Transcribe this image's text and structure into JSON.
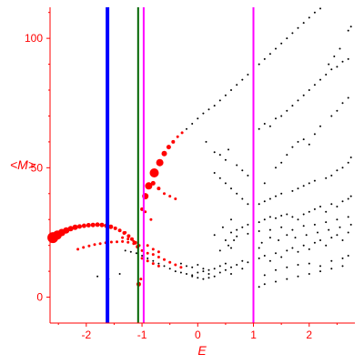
{
  "chart_data": {
    "type": "scatter",
    "xlabel": "E",
    "ylabel": "<M>",
    "xlim": [
      -2.65,
      2.82
    ],
    "ylim": [
      -10,
      112
    ],
    "xticks": [
      -2,
      -1,
      0,
      1,
      2
    ],
    "yticks": [
      0,
      50,
      100
    ],
    "ytick_labels": [
      "0",
      "50",
      "100"
    ],
    "colors": {
      "axis": "#ff0000",
      "black_points": "#000000",
      "red_points": "#ff0000"
    },
    "vlines": [
      {
        "x": -1.62,
        "color": "#0000ff",
        "width": 4
      },
      {
        "x": -1.07,
        "color": "#006400",
        "width": 2
      },
      {
        "x": -0.97,
        "color": "#ff00ff",
        "width": 2
      },
      {
        "x": 1.0,
        "color": "#ff00ff",
        "width": 2
      }
    ],
    "series": [
      {
        "color": "#ff0000",
        "points": [
          [
            -2.6,
            23.0,
            6
          ],
          [
            -2.52,
            24.0,
            5
          ],
          [
            -2.44,
            25.0,
            4
          ],
          [
            -2.36,
            25.8,
            3.5
          ],
          [
            -2.28,
            26.5,
            3
          ],
          [
            -2.2,
            27.0,
            3
          ],
          [
            -2.12,
            27.3,
            2.5
          ],
          [
            -2.04,
            27.6,
            2.5
          ],
          [
            -1.96,
            27.8,
            2.5
          ],
          [
            -1.88,
            27.9,
            2.5
          ],
          [
            -1.8,
            28.0,
            2.5
          ],
          [
            -1.72,
            27.9,
            2.5
          ],
          [
            -1.64,
            27.6,
            2.5
          ],
          [
            -1.56,
            27.2,
            2.5
          ],
          [
            -1.48,
            26.6,
            2
          ],
          [
            -1.4,
            25.8,
            2
          ],
          [
            -1.32,
            24.8,
            2
          ],
          [
            -1.24,
            23.6,
            2
          ],
          [
            -1.18,
            22.4,
            2
          ],
          [
            -1.12,
            21.0,
            2
          ],
          [
            -1.08,
            19.5,
            2
          ],
          [
            -0.94,
            39.0,
            3.5
          ],
          [
            -0.88,
            43.0,
            4
          ],
          [
            -0.78,
            48.0,
            5
          ],
          [
            -0.68,
            52.0,
            4
          ],
          [
            -0.6,
            55.5,
            3
          ],
          [
            -0.52,
            58.0,
            2.5
          ],
          [
            -0.44,
            60.0,
            2
          ],
          [
            -0.36,
            62.0,
            1.5
          ],
          [
            -0.28,
            63.5,
            1.5
          ],
          [
            -0.8,
            44.0,
            2.5
          ],
          [
            -0.7,
            42.0,
            2
          ],
          [
            -0.6,
            40.0,
            1.5
          ],
          [
            -0.5,
            39.0,
            1.5
          ],
          [
            -0.4,
            38.0,
            1.5
          ],
          [
            -1.0,
            34.0,
            2
          ],
          [
            -0.94,
            33.0,
            1.5
          ],
          [
            -0.84,
            30.0,
            1.5
          ],
          [
            -2.15,
            18.5,
            1.5
          ],
          [
            -2.05,
            19.2,
            1.5
          ],
          [
            -1.95,
            19.8,
            1.5
          ],
          [
            -1.85,
            20.3,
            1.5
          ],
          [
            -1.75,
            20.7,
            1.5
          ],
          [
            -1.65,
            21.0,
            1.5
          ],
          [
            -1.55,
            21.3,
            1.5
          ],
          [
            -1.45,
            21.4,
            1.5
          ],
          [
            -1.35,
            21.5,
            1.5
          ],
          [
            -1.25,
            21.2,
            1.5
          ],
          [
            -1.15,
            20.7,
            1.5
          ],
          [
            -1.05,
            20.0,
            1.5
          ],
          [
            -1.35,
            23.0,
            1.5
          ],
          [
            -1.25,
            22.5,
            1.5
          ],
          [
            -1.15,
            21.5,
            1.5
          ],
          [
            -1.3,
            25.0,
            1.5
          ],
          [
            -1.0,
            18.0,
            1.5
          ],
          [
            -0.9,
            17.0,
            1.5
          ],
          [
            -0.8,
            16.5,
            1.5
          ],
          [
            -0.7,
            15.5,
            1.5
          ],
          [
            -0.6,
            14.5,
            1.5
          ],
          [
            -0.5,
            13.5,
            1.5
          ],
          [
            -0.4,
            12.5,
            1.5
          ],
          [
            -0.3,
            11.5,
            1.5
          ],
          [
            -1.0,
            15.0,
            1.5
          ],
          [
            -0.9,
            14.0,
            1.5
          ],
          [
            -0.8,
            13.0,
            1.5
          ],
          [
            -0.7,
            12.0,
            1.5
          ],
          [
            -0.9,
            20.0,
            1.5
          ],
          [
            -0.8,
            18.5,
            1.5
          ],
          [
            -0.7,
            17.5,
            1.5
          ],
          [
            -1.06,
            5.0,
            2.5
          ],
          [
            -1.02,
            7.0,
            1.5
          ]
        ]
      },
      {
        "color": "#000000",
        "points": [
          [
            -0.2,
            65.0
          ],
          [
            -0.1,
            67.0
          ],
          [
            0.0,
            69.0
          ],
          [
            0.1,
            71.0
          ],
          [
            0.2,
            72.5
          ],
          [
            0.3,
            74.0
          ],
          [
            0.4,
            76.0
          ],
          [
            0.5,
            78.0
          ],
          [
            0.6,
            80.0
          ],
          [
            0.7,
            82.0
          ],
          [
            0.8,
            84.0
          ],
          [
            0.9,
            86.0
          ],
          [
            1.0,
            88.0
          ],
          [
            1.1,
            90.0
          ],
          [
            1.2,
            92.0
          ],
          [
            1.3,
            94.0
          ],
          [
            1.4,
            96.0
          ],
          [
            1.5,
            98.0
          ],
          [
            1.6,
            100.0
          ],
          [
            1.7,
            102.0
          ],
          [
            1.8,
            104.0
          ],
          [
            1.9,
            106.0
          ],
          [
            2.0,
            108.0
          ],
          [
            2.1,
            110.0
          ],
          [
            2.2,
            111.5
          ],
          [
            2.35,
            90.0
          ],
          [
            2.45,
            93.0
          ],
          [
            2.55,
            96.0
          ],
          [
            2.7,
            103.0
          ],
          [
            2.75,
            104.5
          ],
          [
            1.1,
            65.0
          ],
          [
            1.2,
            67.0
          ],
          [
            1.3,
            66.0
          ],
          [
            1.4,
            69.0
          ],
          [
            1.5,
            70.0
          ],
          [
            1.6,
            72.0
          ],
          [
            1.7,
            74.0
          ],
          [
            1.8,
            76.0
          ],
          [
            1.9,
            78.0
          ],
          [
            2.0,
            80.0
          ],
          [
            2.1,
            82.0
          ],
          [
            2.2,
            84.0
          ],
          [
            2.3,
            86.0
          ],
          [
            2.4,
            88.0
          ],
          [
            2.5,
            89.0
          ],
          [
            2.6,
            91.0
          ],
          [
            2.7,
            92.0
          ],
          [
            0.15,
            60.0
          ],
          [
            0.3,
            56.0
          ],
          [
            0.4,
            55.0
          ],
          [
            0.5,
            53.0
          ],
          [
            0.55,
            57.0
          ],
          [
            0.7,
            51.0
          ],
          [
            0.8,
            49.0
          ],
          [
            0.9,
            47.0
          ],
          [
            1.0,
            45.0
          ],
          [
            1.2,
            44.0
          ],
          [
            1.4,
            50.0
          ],
          [
            1.5,
            52.0
          ],
          [
            1.6,
            55.0
          ],
          [
            1.7,
            58.0
          ],
          [
            1.8,
            60.0
          ],
          [
            1.9,
            61.0
          ],
          [
            2.0,
            59.0
          ],
          [
            2.1,
            63.0
          ],
          [
            2.2,
            66.0
          ],
          [
            2.4,
            70.0
          ],
          [
            2.5,
            72.0
          ],
          [
            2.6,
            75.0
          ],
          [
            2.7,
            77.0
          ],
          [
            0.3,
            48.0
          ],
          [
            0.4,
            46.0
          ],
          [
            0.5,
            44.0
          ],
          [
            0.6,
            42.0
          ],
          [
            0.7,
            40.0
          ],
          [
            0.8,
            38.0
          ],
          [
            0.9,
            36.0
          ],
          [
            1.1,
            36.0
          ],
          [
            1.2,
            37.0
          ],
          [
            1.3,
            38.0
          ],
          [
            1.4,
            39.0
          ],
          [
            1.5,
            40.0
          ],
          [
            1.7,
            41.0
          ],
          [
            1.8,
            42.0
          ],
          [
            1.9,
            43.0
          ],
          [
            2.0,
            44.0
          ],
          [
            2.1,
            45.0
          ],
          [
            2.3,
            46.0
          ],
          [
            2.4,
            47.0
          ],
          [
            2.5,
            49.0
          ],
          [
            2.6,
            50.0
          ],
          [
            2.7,
            52.0
          ],
          [
            2.75,
            54.0
          ],
          [
            0.6,
            25.0
          ],
          [
            0.7,
            26.0
          ],
          [
            0.8,
            27.0
          ],
          [
            0.9,
            28.0
          ],
          [
            1.0,
            28.0
          ],
          [
            1.1,
            29.0
          ],
          [
            1.2,
            30.0
          ],
          [
            1.3,
            31.0
          ],
          [
            1.4,
            30.5
          ],
          [
            1.5,
            31.5
          ],
          [
            1.6,
            32.0
          ],
          [
            1.7,
            31.0
          ],
          [
            1.8,
            30.0
          ],
          [
            1.9,
            32.0
          ],
          [
            2.0,
            33.0
          ],
          [
            2.1,
            34.0
          ],
          [
            2.2,
            35.0
          ],
          [
            2.3,
            33.0
          ],
          [
            2.4,
            36.0
          ],
          [
            2.5,
            35.0
          ],
          [
            2.6,
            37.0
          ],
          [
            2.7,
            38.0
          ],
          [
            2.75,
            39.0
          ],
          [
            0.5,
            22.0
          ],
          [
            0.7,
            23.5
          ],
          [
            0.9,
            24.5
          ],
          [
            1.1,
            25.5
          ],
          [
            1.3,
            26.0
          ],
          [
            1.5,
            27.0
          ],
          [
            1.7,
            26.0
          ],
          [
            1.9,
            27.5
          ],
          [
            2.1,
            28.0
          ],
          [
            2.3,
            29.0
          ],
          [
            2.5,
            30.0
          ],
          [
            2.7,
            31.0
          ],
          [
            -0.1,
            8.5
          ],
          [
            0.0,
            9.5
          ],
          [
            0.1,
            10.0
          ],
          [
            0.2,
            9.0
          ],
          [
            0.3,
            11.0
          ],
          [
            0.4,
            12.0
          ],
          [
            0.5,
            13.0
          ],
          [
            0.6,
            11.5
          ],
          [
            0.7,
            12.5
          ],
          [
            0.8,
            14.0
          ],
          [
            0.9,
            13.5
          ],
          [
            1.0,
            12.0
          ],
          [
            1.1,
            15.0
          ],
          [
            1.2,
            16.0
          ],
          [
            1.3,
            14.0
          ],
          [
            1.4,
            17.0
          ],
          [
            1.5,
            15.5
          ],
          [
            1.6,
            18.0
          ],
          [
            1.7,
            19.0
          ],
          [
            1.8,
            17.5
          ],
          [
            1.9,
            20.0
          ],
          [
            2.0,
            18.5
          ],
          [
            2.1,
            21.0
          ],
          [
            2.2,
            22.0
          ],
          [
            2.3,
            20.0
          ],
          [
            2.4,
            23.0
          ],
          [
            2.5,
            24.0
          ],
          [
            2.6,
            22.0
          ],
          [
            2.7,
            25.0
          ],
          [
            -0.5,
            11.0
          ],
          [
            -0.4,
            10.0
          ],
          [
            -0.3,
            9.5
          ],
          [
            -0.2,
            9.0
          ],
          [
            -0.1,
            8.0
          ],
          [
            0.0,
            7.5
          ],
          [
            0.1,
            7.0
          ],
          [
            0.2,
            7.5
          ],
          [
            0.3,
            8.0
          ],
          [
            0.4,
            9.5
          ],
          [
            0.5,
            10.5
          ],
          [
            0.6,
            9.0
          ],
          [
            0.8,
            11.0
          ],
          [
            1.0,
            10.0
          ],
          [
            1.2,
            8.5
          ],
          [
            1.4,
            10.5
          ],
          [
            1.6,
            11.5
          ],
          [
            1.8,
            12.5
          ],
          [
            2.0,
            13.0
          ],
          [
            2.2,
            12.0
          ],
          [
            2.4,
            14.0
          ],
          [
            2.6,
            15.0
          ],
          [
            2.7,
            16.0
          ],
          [
            -0.6,
            12.0
          ],
          [
            -0.7,
            13.0
          ],
          [
            -0.8,
            14.0
          ],
          [
            -0.9,
            15.0
          ],
          [
            -1.0,
            16.0
          ],
          [
            -1.1,
            17.0
          ],
          [
            -1.2,
            17.5
          ],
          [
            -1.3,
            18.0
          ],
          [
            -0.3,
            13.0
          ],
          [
            -0.2,
            12.0
          ],
          [
            -0.1,
            11.5
          ],
          [
            0.0,
            12.5
          ],
          [
            0.1,
            11.0
          ],
          [
            0.2,
            10.5
          ],
          [
            0.4,
            18.0
          ],
          [
            0.55,
            20.0
          ],
          [
            0.6,
            19.0
          ],
          [
            0.65,
            22.0
          ],
          [
            0.3,
            24.0
          ],
          [
            0.45,
            27.0
          ],
          [
            0.6,
            30.0
          ],
          [
            1.0,
            20.0
          ],
          [
            1.1,
            19.0
          ],
          [
            1.15,
            21.0
          ],
          [
            1.3,
            23.0
          ],
          [
            1.45,
            22.0
          ],
          [
            1.6,
            24.0
          ],
          [
            1.75,
            23.0
          ],
          [
            1.95,
            24.0
          ],
          [
            2.15,
            25.0
          ],
          [
            2.35,
            26.0
          ],
          [
            2.55,
            27.0
          ],
          [
            2.75,
            28.0
          ],
          [
            1.0,
            3.0
          ],
          [
            1.1,
            4.0
          ],
          [
            1.2,
            5.0
          ],
          [
            1.4,
            6.0
          ],
          [
            1.6,
            7.0
          ],
          [
            1.8,
            8.0
          ],
          [
            2.0,
            9.0
          ],
          [
            2.2,
            10.0
          ],
          [
            2.4,
            11.0
          ],
          [
            2.6,
            12.0
          ],
          [
            -1.8,
            8.0
          ],
          [
            -1.6,
            7.0
          ],
          [
            -1.4,
            9.0
          ]
        ]
      }
    ]
  }
}
